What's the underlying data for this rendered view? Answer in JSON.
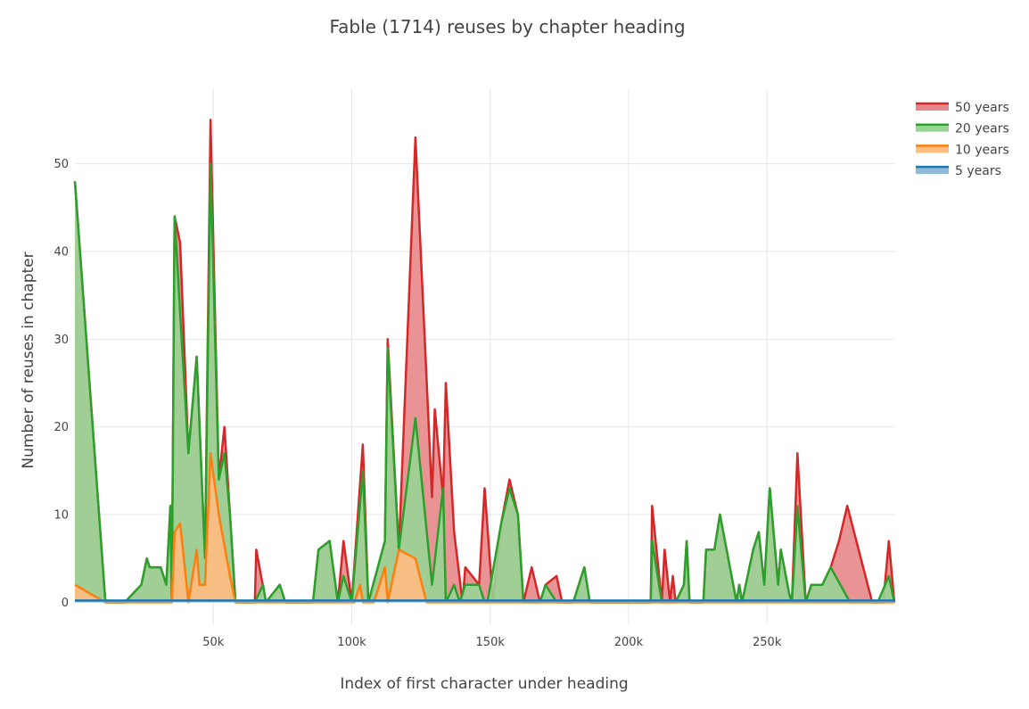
{
  "chart_data": {
    "type": "area",
    "title": "Fable (1714) reuses by chapter heading",
    "xlabel": "Index of first character under heading",
    "ylabel": "Number of reuses in chapter",
    "xlim": [
      0,
      296000
    ],
    "ylim": [
      -2.5,
      58.5
    ],
    "x_ticks": [
      50000,
      100000,
      150000,
      200000,
      250000
    ],
    "x_tick_labels": [
      "50k",
      "100k",
      "150k",
      "200k",
      "250k"
    ],
    "y_ticks": [
      0,
      10,
      20,
      30,
      40,
      50
    ],
    "y_tick_labels": [
      "0",
      "10",
      "20",
      "30",
      "40",
      "50"
    ],
    "legend_position": "top-right",
    "series": [
      {
        "name": "50 years",
        "color": "#d62728",
        "fill": "#e7878a",
        "points": [
          [
            0,
            48
          ],
          [
            11000,
            0
          ],
          [
            18000,
            0
          ],
          [
            24000,
            2
          ],
          [
            26000,
            5
          ],
          [
            27000,
            4
          ],
          [
            31000,
            4
          ],
          [
            33000,
            2
          ],
          [
            34500,
            11
          ],
          [
            35000,
            0
          ],
          [
            36000,
            44
          ],
          [
            38000,
            41
          ],
          [
            41000,
            17
          ],
          [
            44000,
            28
          ],
          [
            47000,
            5
          ],
          [
            49000,
            55
          ],
          [
            52000,
            14
          ],
          [
            54000,
            20
          ],
          [
            56000,
            10
          ],
          [
            58000,
            0
          ],
          [
            65000,
            0
          ],
          [
            65500,
            6
          ],
          [
            69000,
            0
          ],
          [
            74000,
            2
          ],
          [
            76000,
            0
          ],
          [
            86000,
            0
          ],
          [
            88000,
            6
          ],
          [
            92000,
            7
          ],
          [
            95000,
            0
          ],
          [
            97000,
            7
          ],
          [
            100000,
            0
          ],
          [
            104000,
            18
          ],
          [
            106000,
            0
          ],
          [
            112000,
            7
          ],
          [
            113000,
            30
          ],
          [
            117000,
            6
          ],
          [
            123000,
            53
          ],
          [
            129000,
            12
          ],
          [
            130000,
            22
          ],
          [
            133000,
            12
          ],
          [
            134000,
            25
          ],
          [
            137000,
            8
          ],
          [
            140000,
            0
          ],
          [
            141000,
            4
          ],
          [
            146000,
            2
          ],
          [
            148000,
            13
          ],
          [
            151000,
            0
          ],
          [
            154000,
            9
          ],
          [
            157000,
            14
          ],
          [
            160000,
            10
          ],
          [
            162000,
            0
          ],
          [
            165000,
            4
          ],
          [
            168000,
            0
          ],
          [
            170000,
            2
          ],
          [
            174000,
            3
          ],
          [
            176000,
            0
          ],
          [
            180000,
            0
          ],
          [
            184000,
            4
          ],
          [
            186000,
            0
          ],
          [
            208000,
            0
          ],
          [
            208500,
            11
          ],
          [
            212000,
            0
          ],
          [
            213000,
            6
          ],
          [
            215000,
            0
          ],
          [
            216000,
            3
          ],
          [
            217000,
            0
          ],
          [
            220000,
            2
          ],
          [
            221000,
            7
          ],
          [
            222000,
            0
          ],
          [
            227000,
            0
          ],
          [
            228000,
            6
          ],
          [
            231000,
            6
          ],
          [
            233000,
            10
          ],
          [
            239000,
            0
          ],
          [
            240000,
            2
          ],
          [
            241000,
            0
          ],
          [
            245000,
            6
          ],
          [
            247000,
            8
          ],
          [
            249000,
            2
          ],
          [
            251000,
            13
          ],
          [
            254000,
            2
          ],
          [
            255000,
            6
          ],
          [
            258000,
            1
          ],
          [
            259000,
            0
          ],
          [
            261000,
            17
          ],
          [
            264000,
            0
          ],
          [
            266000,
            2
          ],
          [
            270000,
            2
          ],
          [
            273000,
            4
          ],
          [
            276000,
            7
          ],
          [
            279000,
            11
          ],
          [
            288000,
            0
          ],
          [
            292000,
            0
          ],
          [
            294000,
            7
          ],
          [
            296000,
            0
          ]
        ]
      },
      {
        "name": "20 years",
        "color": "#2ca02c",
        "fill": "#98d595",
        "points": [
          [
            0,
            48
          ],
          [
            11000,
            0
          ],
          [
            18000,
            0
          ],
          [
            24000,
            2
          ],
          [
            26000,
            5
          ],
          [
            27000,
            4
          ],
          [
            31000,
            4
          ],
          [
            33000,
            2
          ],
          [
            34500,
            11
          ],
          [
            35000,
            0
          ],
          [
            36000,
            44
          ],
          [
            38000,
            33
          ],
          [
            41000,
            17
          ],
          [
            44000,
            28
          ],
          [
            47000,
            5
          ],
          [
            49000,
            50
          ],
          [
            52000,
            14
          ],
          [
            54000,
            17
          ],
          [
            56000,
            10
          ],
          [
            58000,
            0
          ],
          [
            65000,
            0
          ],
          [
            68000,
            2
          ],
          [
            69000,
            0
          ],
          [
            74000,
            2
          ],
          [
            76000,
            0
          ],
          [
            86000,
            0
          ],
          [
            88000,
            6
          ],
          [
            92000,
            7
          ],
          [
            95000,
            0
          ],
          [
            97000,
            3
          ],
          [
            100000,
            0
          ],
          [
            104000,
            15
          ],
          [
            106000,
            0
          ],
          [
            112000,
            7
          ],
          [
            113000,
            29
          ],
          [
            117000,
            6
          ],
          [
            123000,
            21
          ],
          [
            129000,
            2
          ],
          [
            133000,
            13
          ],
          [
            134000,
            0
          ],
          [
            137000,
            2
          ],
          [
            139000,
            0
          ],
          [
            141000,
            2
          ],
          [
            146000,
            2
          ],
          [
            148000,
            0
          ],
          [
            149000,
            0
          ],
          [
            154000,
            9
          ],
          [
            157000,
            13
          ],
          [
            160000,
            10
          ],
          [
            162000,
            0
          ],
          [
            168000,
            0
          ],
          [
            170000,
            2
          ],
          [
            174000,
            0
          ],
          [
            180000,
            0
          ],
          [
            184000,
            4
          ],
          [
            186000,
            0
          ],
          [
            208000,
            0
          ],
          [
            208500,
            7
          ],
          [
            212000,
            0
          ],
          [
            215000,
            0
          ],
          [
            217000,
            0
          ],
          [
            220000,
            2
          ],
          [
            221000,
            7
          ],
          [
            222000,
            0
          ],
          [
            227000,
            0
          ],
          [
            228000,
            6
          ],
          [
            231000,
            6
          ],
          [
            233000,
            10
          ],
          [
            239000,
            0
          ],
          [
            240000,
            2
          ],
          [
            241000,
            0
          ],
          [
            245000,
            6
          ],
          [
            247000,
            8
          ],
          [
            249000,
            2
          ],
          [
            251000,
            13
          ],
          [
            254000,
            2
          ],
          [
            255000,
            6
          ],
          [
            258000,
            1
          ],
          [
            259000,
            0
          ],
          [
            261000,
            11
          ],
          [
            264000,
            0
          ],
          [
            266000,
            2
          ],
          [
            270000,
            2
          ],
          [
            273000,
            4
          ],
          [
            280000,
            0
          ],
          [
            290000,
            0
          ],
          [
            294000,
            3
          ],
          [
            296000,
            0
          ]
        ]
      },
      {
        "name": "10 years",
        "color": "#ff7f0e",
        "fill": "#ffbd80",
        "points": [
          [
            0,
            2
          ],
          [
            11000,
            0
          ],
          [
            35000,
            0
          ],
          [
            36000,
            8
          ],
          [
            38000,
            9
          ],
          [
            41000,
            0
          ],
          [
            44000,
            6
          ],
          [
            45000,
            2
          ],
          [
            47000,
            2
          ],
          [
            49000,
            17
          ],
          [
            52000,
            10
          ],
          [
            56000,
            3
          ],
          [
            58000,
            0
          ],
          [
            101000,
            0
          ],
          [
            103000,
            2
          ],
          [
            104000,
            0
          ],
          [
            108000,
            0
          ],
          [
            112000,
            4
          ],
          [
            113000,
            0
          ],
          [
            117000,
            6
          ],
          [
            123000,
            5
          ],
          [
            127000,
            0
          ],
          [
            296000,
            0
          ]
        ]
      },
      {
        "name": "5 years",
        "color": "#1f77b4",
        "fill": "#8fbbd9",
        "points": [
          [
            0,
            0.2
          ],
          [
            296000,
            0.2
          ]
        ]
      }
    ]
  }
}
